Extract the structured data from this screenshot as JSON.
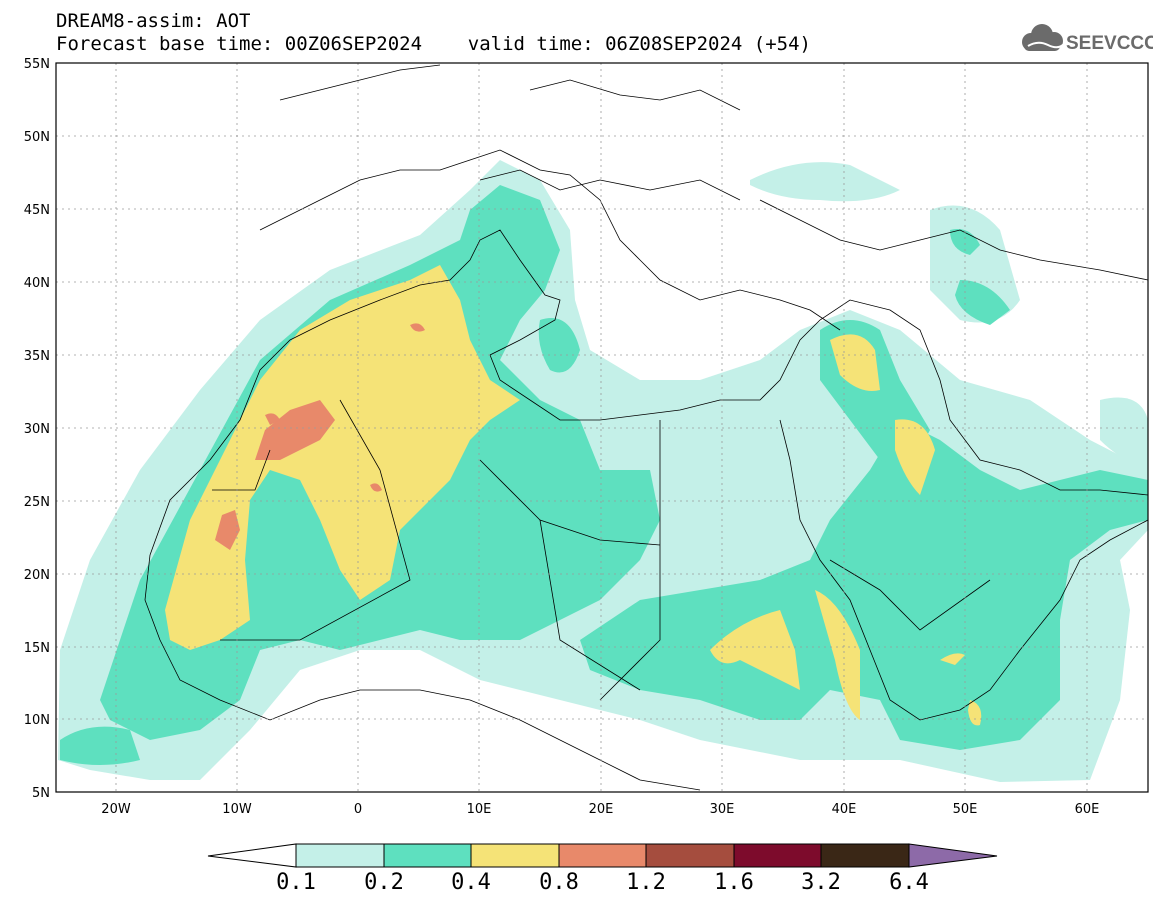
{
  "header": {
    "line1": "DREAM8-assim: AOT",
    "line2": "Forecast base time: 00Z06SEP2024    valid time: 06Z08SEP2024 (+54)",
    "logo_text": "SEEVCCC"
  },
  "map": {
    "projection": "lat-lon",
    "lon_range": [
      -25,
      65
    ],
    "lat_range": [
      5,
      55
    ],
    "lat_ticks": [
      "55N",
      "50N",
      "45N",
      "40N",
      "35N",
      "30N",
      "25N",
      "20N",
      "15N",
      "10N",
      "5N"
    ],
    "lon_ticks": [
      "20W",
      "10W",
      "0",
      "10E",
      "20E",
      "30E",
      "40E",
      "50E",
      "60E"
    ],
    "gridlines": "dotted"
  },
  "colorbar": {
    "labels": [
      "0.1",
      "0.2",
      "0.4",
      "0.8",
      "1.2",
      "1.6",
      "3.2",
      "6.4"
    ],
    "colors": [
      "#ffffff",
      "#c4f0e8",
      "#5ee0bf",
      "#f5e377",
      "#e8896a",
      "#a54d3e",
      "#7d0b2c",
      "#3a2716",
      "#8d6aa8"
    ]
  }
}
